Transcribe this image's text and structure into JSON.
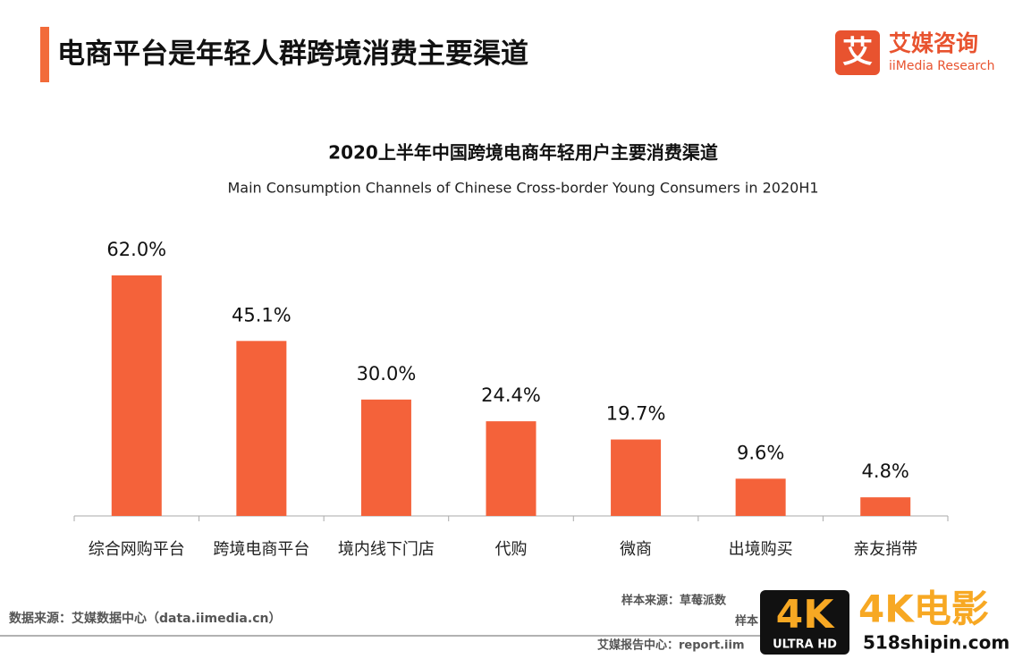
{
  "header": {
    "title": "电商平台是年轻人群跨境消费主要渠道",
    "logo_mark": "艾",
    "logo_name": "艾媒咨询",
    "logo_name_en": "iiMedia Research"
  },
  "chart_data": {
    "type": "bar",
    "title": "2020上半年中国跨境电商年轻用户主要消费渠道",
    "subtitle": "Main Consumption Channels of Chinese Cross-border Young Consumers in 2020H1",
    "categories": [
      "综合网购平台",
      "跨境电商平台",
      "境内线下门店",
      "代购",
      "微商",
      "出境购买",
      "亲友捎带"
    ],
    "values": [
      62.0,
      45.1,
      30.0,
      24.4,
      19.7,
      9.6,
      4.8
    ],
    "value_labels": [
      "62.0%",
      "45.1%",
      "30.0%",
      "24.4%",
      "19.7%",
      "9.6%",
      "4.8%"
    ],
    "color": "#f4623a"
  },
  "footer": {
    "source": "数据来源：艾媒数据中心（data.iimedia.cn）",
    "sample_source": "样本来源：草莓派数",
    "sample": "样本",
    "report_center": "艾媒报告中心：report.iim"
  },
  "watermark": {
    "badge": "4K",
    "badge_sub": "ULTRA HD",
    "brand": "4K电影",
    "site": "518shipin.com"
  }
}
